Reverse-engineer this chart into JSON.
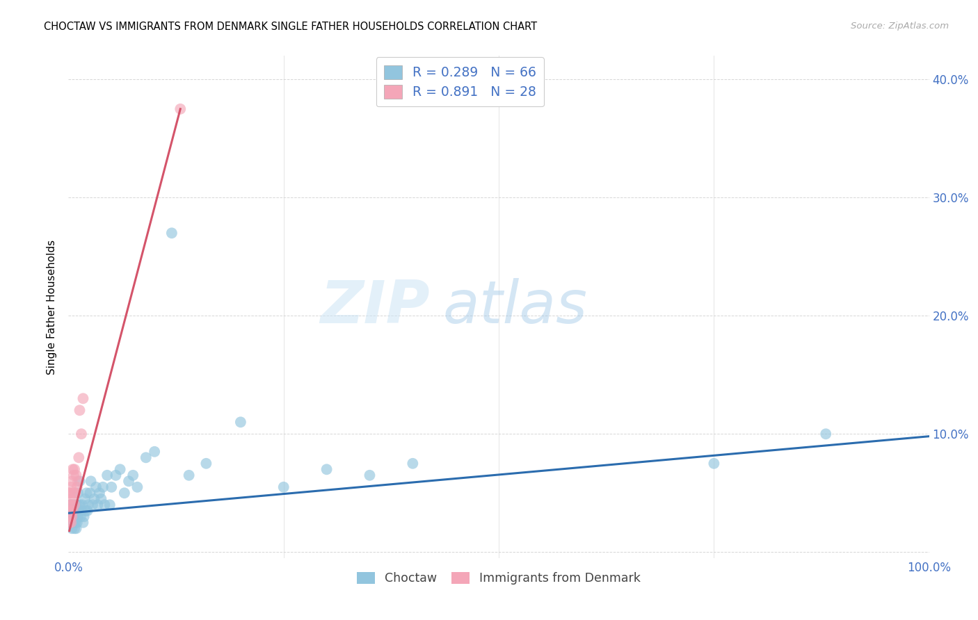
{
  "title": "CHOCTAW VS IMMIGRANTS FROM DENMARK SINGLE FATHER HOUSEHOLDS CORRELATION CHART",
  "source": "Source: ZipAtlas.com",
  "ylabel": "Single Father Households",
  "r1": 0.289,
  "n1": 66,
  "r2": 0.891,
  "n2": 28,
  "color_blue": "#92c5de",
  "color_pink": "#f4a6b8",
  "line_color_blue": "#2b6cae",
  "line_color_pink": "#d4546a",
  "watermark_zip": "ZIP",
  "watermark_atlas": "atlas",
  "legend_label_1": "Choctaw",
  "legend_label_2": "Immigrants from Denmark",
  "title_fontsize": 10.5,
  "background_color": "#ffffff",
  "xlim": [
    0.0,
    1.0
  ],
  "ylim": [
    -0.005,
    0.42
  ],
  "xticks": [
    0.0,
    0.25,
    0.5,
    0.75,
    1.0
  ],
  "xtick_labels": [
    "0.0%",
    "",
    "",
    "",
    "100.0%"
  ],
  "yticks": [
    0.0,
    0.1,
    0.2,
    0.3,
    0.4
  ],
  "ytick_labels": [
    "",
    "10.0%",
    "20.0%",
    "30.0%",
    "40.0%"
  ],
  "choctaw_x": [
    0.002,
    0.002,
    0.003,
    0.003,
    0.003,
    0.004,
    0.004,
    0.005,
    0.005,
    0.005,
    0.006,
    0.006,
    0.007,
    0.007,
    0.008,
    0.008,
    0.009,
    0.009,
    0.01,
    0.01,
    0.011,
    0.011,
    0.012,
    0.013,
    0.013,
    0.014,
    0.015,
    0.016,
    0.017,
    0.018,
    0.019,
    0.02,
    0.021,
    0.022,
    0.023,
    0.025,
    0.026,
    0.028,
    0.03,
    0.032,
    0.034,
    0.036,
    0.038,
    0.04,
    0.042,
    0.045,
    0.048,
    0.05,
    0.055,
    0.06,
    0.065,
    0.07,
    0.075,
    0.08,
    0.09,
    0.1,
    0.12,
    0.14,
    0.16,
    0.2,
    0.25,
    0.3,
    0.35,
    0.4,
    0.75,
    0.88
  ],
  "choctaw_y": [
    0.03,
    0.04,
    0.03,
    0.035,
    0.04,
    0.02,
    0.03,
    0.025,
    0.035,
    0.04,
    0.025,
    0.03,
    0.02,
    0.035,
    0.025,
    0.04,
    0.03,
    0.02,
    0.025,
    0.04,
    0.03,
    0.05,
    0.035,
    0.04,
    0.06,
    0.03,
    0.035,
    0.04,
    0.025,
    0.03,
    0.045,
    0.035,
    0.05,
    0.035,
    0.04,
    0.05,
    0.06,
    0.04,
    0.045,
    0.055,
    0.04,
    0.05,
    0.045,
    0.055,
    0.04,
    0.065,
    0.04,
    0.055,
    0.065,
    0.07,
    0.05,
    0.06,
    0.065,
    0.055,
    0.08,
    0.085,
    0.27,
    0.065,
    0.075,
    0.11,
    0.055,
    0.07,
    0.065,
    0.075,
    0.075,
    0.1
  ],
  "denmark_x": [
    0.001,
    0.001,
    0.001,
    0.002,
    0.002,
    0.002,
    0.003,
    0.003,
    0.003,
    0.003,
    0.004,
    0.004,
    0.004,
    0.005,
    0.005,
    0.006,
    0.006,
    0.007,
    0.007,
    0.008,
    0.009,
    0.01,
    0.011,
    0.012,
    0.013,
    0.015,
    0.017,
    0.13
  ],
  "denmark_y": [
    0.025,
    0.035,
    0.05,
    0.03,
    0.04,
    0.05,
    0.025,
    0.035,
    0.045,
    0.055,
    0.03,
    0.04,
    0.06,
    0.035,
    0.07,
    0.05,
    0.065,
    0.04,
    0.07,
    0.05,
    0.065,
    0.055,
    0.06,
    0.08,
    0.12,
    0.1,
    0.13,
    0.375
  ],
  "blue_trend_x0": 0.0,
  "blue_trend_x1": 1.0,
  "blue_trend_y0": 0.033,
  "blue_trend_y1": 0.098,
  "pink_trend_x0": 0.001,
  "pink_trend_x1": 0.13,
  "pink_trend_y0": 0.018,
  "pink_trend_y1": 0.375
}
